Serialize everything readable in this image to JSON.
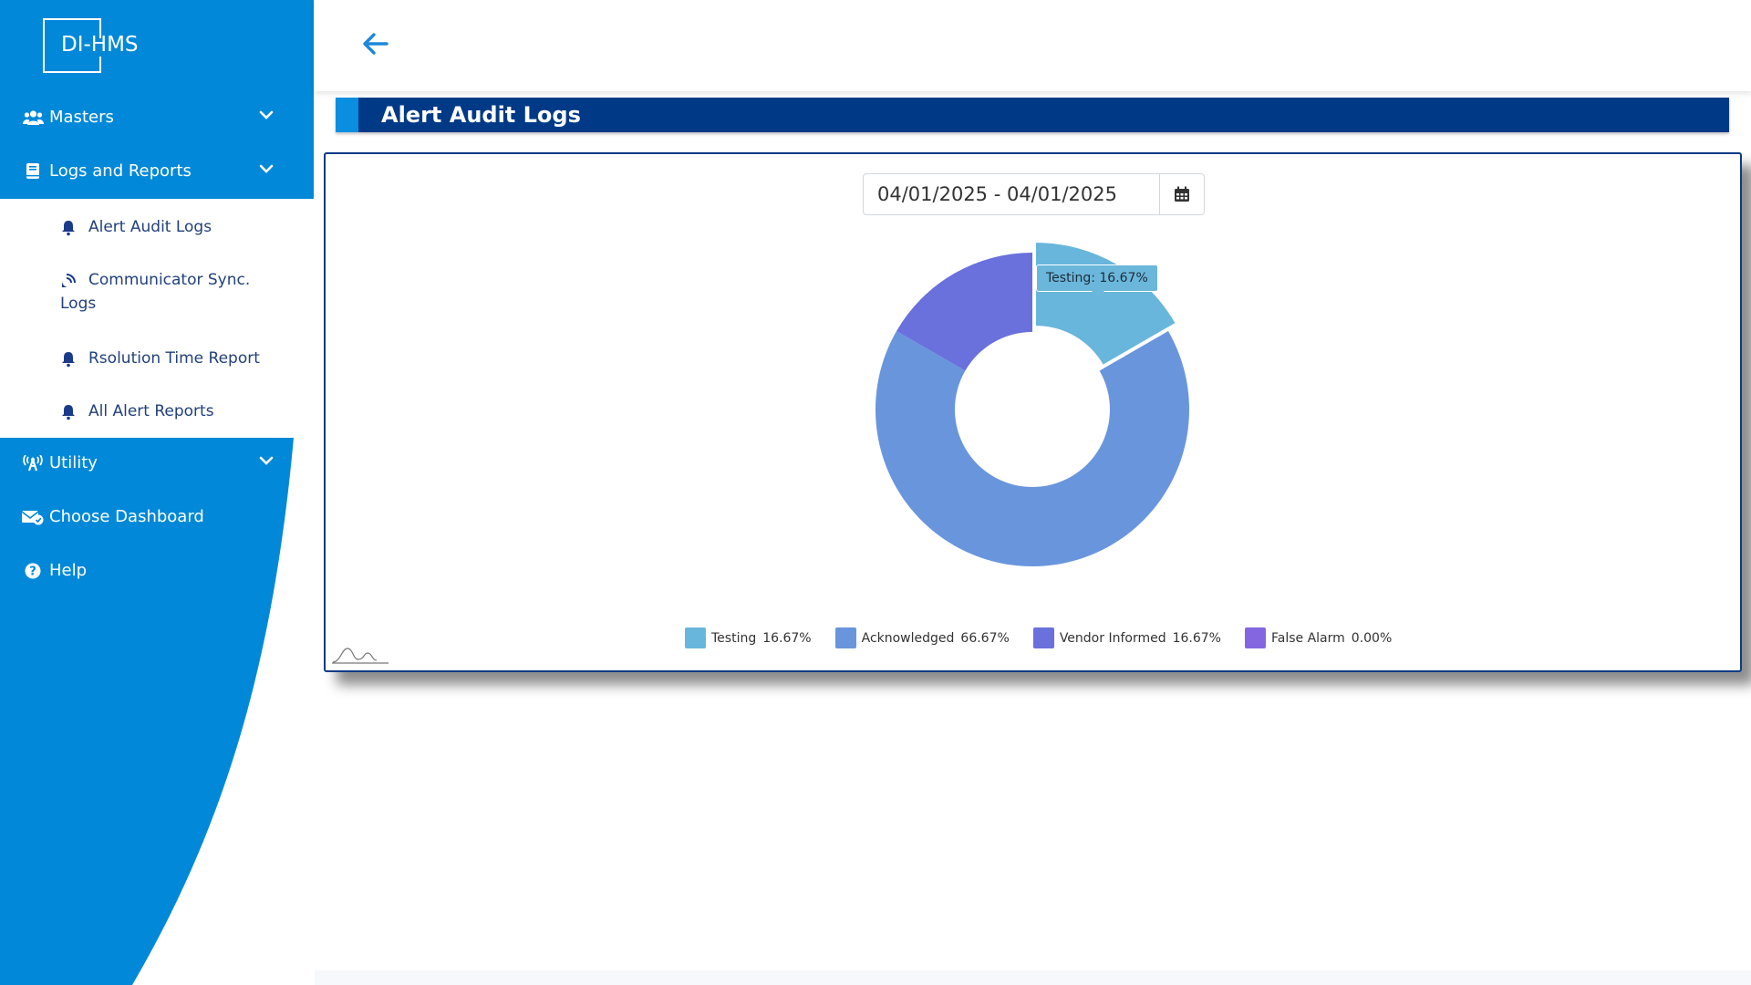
{
  "app": {
    "logo_text": "DI-HMS"
  },
  "sidebar": {
    "nav": [
      {
        "label": "Masters",
        "icon": "users-icon"
      },
      {
        "label": "Logs and Reports",
        "icon": "book-icon"
      },
      {
        "label": "Utility",
        "icon": "broadcast-tower-icon"
      },
      {
        "label": "Choose Dashboard",
        "icon": "envelope-check-icon"
      },
      {
        "label": "Help",
        "icon": "question-circle-icon"
      }
    ],
    "sub_items": [
      {
        "label": "Alert Audit Logs",
        "icon": "bell-icon"
      },
      {
        "label_line1": "Communicator Sync.",
        "label_line2": "Logs",
        "icon": "satellite-dish-icon"
      },
      {
        "label": "Rsolution Time Report",
        "icon": "bell-icon"
      },
      {
        "label": "All Alert Reports",
        "icon": "bell-icon"
      }
    ]
  },
  "page": {
    "title": "Alert Audit Logs",
    "date_range": "04/01/2025 - 04/01/2025"
  },
  "colors": {
    "sidebar": "#0288d8",
    "title_bar": "#003a87",
    "testing": "#69b6dc",
    "acknowledged": "#6995dd",
    "vendor_informed": "#6a70dc",
    "false_alarm": "#8467e0"
  },
  "chart_data": {
    "type": "pie",
    "subtype": "donut",
    "labels": [
      "Testing",
      "Acknowledged",
      "Vendor Informed",
      "False Alarm"
    ],
    "values": [
      16.67,
      66.67,
      16.67,
      0.0
    ],
    "value_labels": [
      "16.67%",
      "66.67%",
      "16.67%",
      "0.00%"
    ],
    "colors": [
      "#69b6dc",
      "#6995dd",
      "#6a70dc",
      "#8467e0"
    ],
    "highlighted": "Testing",
    "tooltip": "Testing: 16.67%",
    "legend_position": "bottom"
  }
}
